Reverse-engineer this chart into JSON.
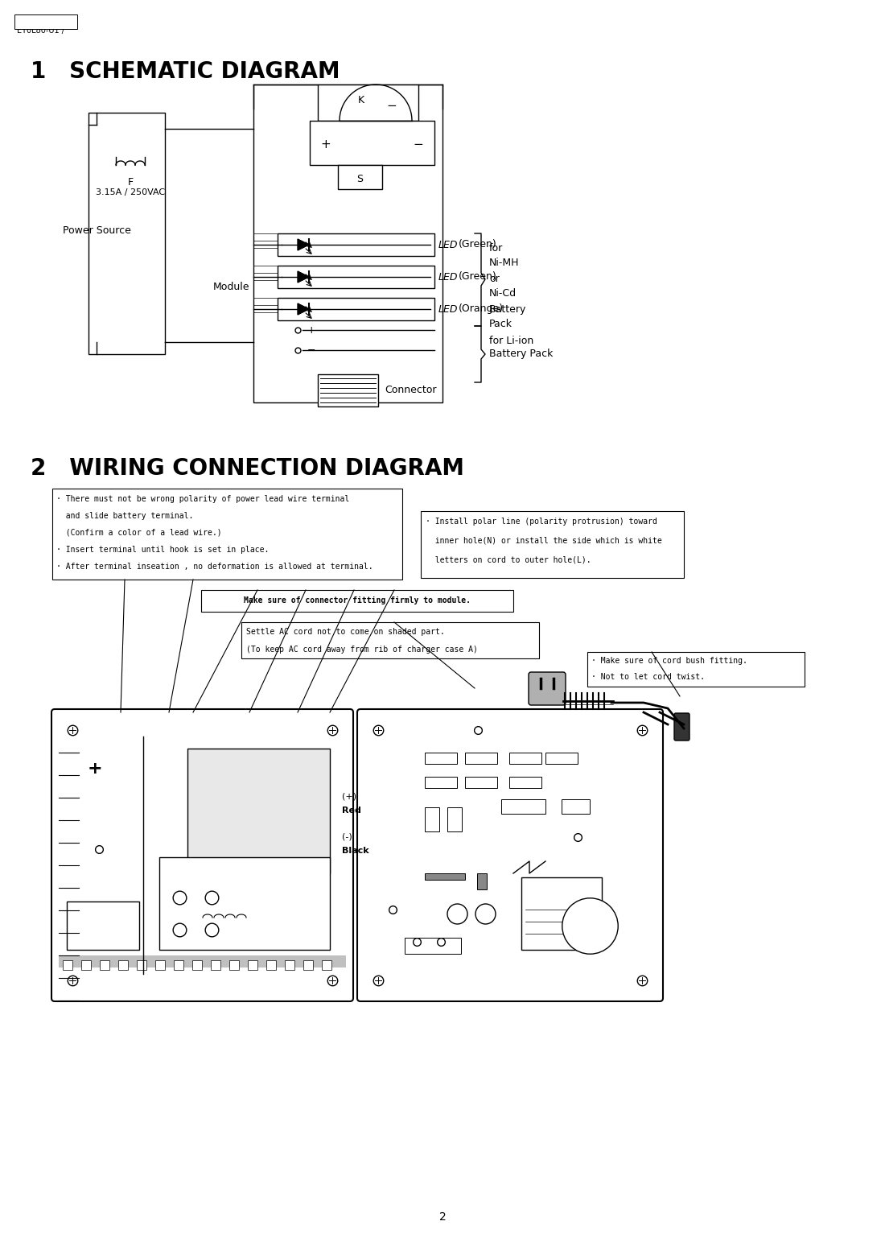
{
  "bg_color": "#ffffff",
  "page_num": "2",
  "header_label": "EY0L80-U1 /",
  "section1_title": "1   SCHEMATIC DIAGRAM",
  "section2_title": "2   WIRING CONNECTION DIAGRAM",
  "note1_lines": [
    "· There must not be wrong polarity of power lead wire terminal",
    "  and slide battery terminal.",
    "  (Confirm a color of a lead wire.)",
    "· Insert terminal until hook is set in place.",
    "· After terminal inseation , no deformation is allowed at terminal."
  ],
  "note2_lines": [
    "· Install polar line (polarity protrusion) toward",
    "  inner hole(N) or install the side which is white",
    "  letters on cord to outer hole(L)."
  ],
  "note3": "Make sure of connector fitting firmly to module.",
  "note4_lines": [
    "Settle AC cord not to come on shaded part.",
    "(To keep AC cord away from rib of charger case A)"
  ],
  "note5_lines": [
    "· Make sure of cord bush fitting.",
    "· Not to let cord twist."
  ],
  "fig_width": 10.8,
  "fig_height": 15.28,
  "dpi": 100
}
